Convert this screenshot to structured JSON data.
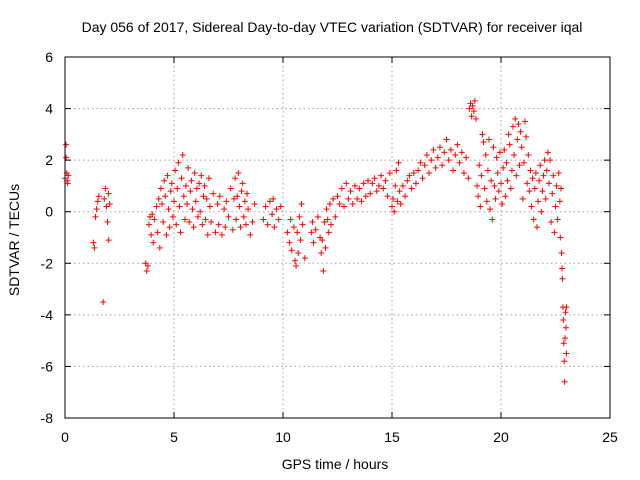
{
  "chart_data": {
    "type": "scatter",
    "title": "Day 056 of 2017, Sidereal Day-to-day VTEC variation (SDTVAR) for receiver iqal",
    "xlabel": "GPS time / hours",
    "ylabel": "SDTVAR / TECUs",
    "xlim": [
      0,
      25
    ],
    "ylim": [
      -8,
      6
    ],
    "x_ticks": [
      0,
      5,
      10,
      15,
      20,
      25
    ],
    "y_ticks": [
      -8,
      -6,
      -4,
      -2,
      0,
      2,
      4,
      6
    ],
    "x_tick_labels": [
      "0",
      "5",
      "10",
      "15",
      "20",
      "25"
    ],
    "y_tick_labels": [
      "-8",
      "-6",
      "-4",
      "-2",
      "0",
      "2",
      "4",
      "6"
    ],
    "grid": true,
    "marker": "plus",
    "color": "#ff0000",
    "series": [
      {
        "name": "SDTVAR",
        "points": [
          [
            0.0,
            1.3
          ],
          [
            0.05,
            2.6
          ],
          [
            0.05,
            2.1
          ],
          [
            0.08,
            1.5
          ],
          [
            0.1,
            1.2
          ],
          [
            0.12,
            1.1
          ],
          [
            0.15,
            1.4
          ],
          [
            1.3,
            -1.2
          ],
          [
            1.35,
            -1.4
          ],
          [
            1.4,
            -0.2
          ],
          [
            1.45,
            0.1
          ],
          [
            1.5,
            0.4
          ],
          [
            1.55,
            0.6
          ],
          [
            1.75,
            -3.5
          ],
          [
            1.8,
            0.5
          ],
          [
            1.85,
            0.9
          ],
          [
            1.9,
            0.2
          ],
          [
            1.95,
            -0.4
          ],
          [
            2.0,
            0.7
          ],
          [
            2.0,
            -1.1
          ],
          [
            2.05,
            0.3
          ],
          [
            3.7,
            -2.0
          ],
          [
            3.75,
            -2.3
          ],
          [
            3.8,
            -2.1
          ],
          [
            3.85,
            -0.5
          ],
          [
            3.9,
            -0.2
          ],
          [
            3.95,
            -0.9
          ],
          [
            4.0,
            -0.1
          ],
          [
            4.05,
            -1.2
          ],
          [
            4.1,
            -0.3
          ],
          [
            4.2,
            0.2
          ],
          [
            4.25,
            -0.8
          ],
          [
            4.3,
            0.5
          ],
          [
            4.35,
            -1.4
          ],
          [
            4.4,
            0.9
          ],
          [
            4.45,
            0.3
          ],
          [
            4.5,
            -0.4
          ],
          [
            4.55,
            1.2
          ],
          [
            4.6,
            0.6
          ],
          [
            4.65,
            -0.9
          ],
          [
            4.7,
            1.4
          ],
          [
            4.75,
            0.1
          ],
          [
            4.8,
            -0.6
          ],
          [
            4.85,
            0.8
          ],
          [
            4.9,
            1.1
          ],
          [
            4.95,
            -0.2
          ],
          [
            5.0,
            0.4
          ],
          [
            5.05,
            1.6
          ],
          [
            5.1,
            -0.5
          ],
          [
            5.15,
            0.9
          ],
          [
            5.2,
            1.9
          ],
          [
            5.25,
            0.2
          ],
          [
            5.3,
            -0.8
          ],
          [
            5.35,
            1.3
          ],
          [
            5.4,
            2.2
          ],
          [
            5.45,
            0.6
          ],
          [
            5.5,
            -0.3
          ],
          [
            5.55,
            1.0
          ],
          [
            5.6,
            0.3
          ],
          [
            5.65,
            1.7
          ],
          [
            5.7,
            -0.4
          ],
          [
            5.75,
            0.8
          ],
          [
            5.8,
            1.2
          ],
          [
            5.85,
            0.1
          ],
          [
            5.9,
            -0.6
          ],
          [
            5.95,
            1.5
          ],
          [
            6.0,
            0.4
          ],
          [
            6.05,
            0.9
          ],
          [
            6.1,
            -0.2
          ],
          [
            6.15,
            1.1
          ],
          [
            6.2,
            0.0
          ],
          [
            6.25,
            1.4
          ],
          [
            6.3,
            -0.5
          ],
          [
            6.35,
            0.6
          ],
          [
            6.4,
            1.0
          ],
          [
            6.45,
            -0.3
          ],
          [
            6.5,
            0.5
          ],
          [
            6.55,
            -0.9
          ],
          [
            6.6,
            1.3
          ],
          [
            6.65,
            0.2
          ],
          [
            6.7,
            -0.4
          ],
          [
            6.8,
            0.7
          ],
          [
            6.9,
            -0.8
          ],
          [
            7.0,
            0.3
          ],
          [
            7.05,
            -0.5
          ],
          [
            7.1,
            0.6
          ],
          [
            7.2,
            -0.9
          ],
          [
            7.3,
            0.1
          ],
          [
            7.35,
            -0.6
          ],
          [
            7.4,
            0.4
          ],
          [
            7.5,
            -0.2
          ],
          [
            7.6,
            0.9
          ],
          [
            7.7,
            -0.7
          ],
          [
            7.75,
            0.5
          ],
          [
            7.8,
            1.3
          ],
          [
            7.85,
            -0.3
          ],
          [
            7.9,
            0.6
          ],
          [
            7.95,
            1.5
          ],
          [
            8.0,
            0.2
          ],
          [
            8.05,
            -0.6
          ],
          [
            8.1,
            0.8
          ],
          [
            8.15,
            1.1
          ],
          [
            8.2,
            -0.2
          ],
          [
            8.25,
            0.4
          ],
          [
            8.3,
            -0.5
          ],
          [
            8.35,
            0.7
          ],
          [
            8.4,
            0.1
          ],
          [
            8.5,
            -0.9
          ],
          [
            8.6,
            -0.4
          ],
          [
            8.7,
            0.3
          ],
          [
            9.1,
            -0.3
          ],
          [
            9.2,
            0.2
          ],
          [
            9.3,
            -0.5
          ],
          [
            9.4,
            0.4
          ],
          [
            9.5,
            -0.1
          ],
          [
            9.55,
            0.5
          ],
          [
            9.6,
            -0.6
          ],
          [
            9.7,
            0.1
          ],
          [
            9.8,
            -0.3
          ],
          [
            9.9,
            0.2
          ],
          [
            10.2,
            -0.8
          ],
          [
            10.3,
            -1.2
          ],
          [
            10.35,
            -0.3
          ],
          [
            10.4,
            -1.5
          ],
          [
            10.5,
            -0.6
          ],
          [
            10.55,
            -1.9
          ],
          [
            10.6,
            -2.1
          ],
          [
            10.65,
            -0.8
          ],
          [
            10.7,
            -1.6
          ],
          [
            10.75,
            -0.2
          ],
          [
            10.8,
            -1.1
          ],
          [
            10.85,
            0.3
          ],
          [
            10.9,
            -0.5
          ],
          [
            11.0,
            -1.8
          ],
          [
            11.3,
            -0.8
          ],
          [
            11.35,
            -0.4
          ],
          [
            11.4,
            -1.2
          ],
          [
            11.5,
            -0.7
          ],
          [
            11.6,
            -0.2
          ],
          [
            11.7,
            -1.0
          ],
          [
            11.75,
            -1.6
          ],
          [
            11.8,
            -1.1
          ],
          [
            11.85,
            -2.3
          ],
          [
            11.9,
            -0.4
          ],
          [
            11.95,
            -1.4
          ],
          [
            12.0,
            0.1
          ],
          [
            12.05,
            -0.3
          ],
          [
            12.1,
            -0.8
          ],
          [
            12.15,
            0.3
          ],
          [
            12.2,
            -0.5
          ],
          [
            12.3,
            0.5
          ],
          [
            12.4,
            -0.2
          ],
          [
            12.5,
            0.6
          ],
          [
            12.6,
            0.3
          ],
          [
            12.7,
            0.9
          ],
          [
            12.8,
            0.2
          ],
          [
            12.9,
            1.1
          ],
          [
            13.0,
            0.5
          ],
          [
            13.1,
            0.8
          ],
          [
            13.2,
            0.3
          ],
          [
            13.3,
            1.0
          ],
          [
            13.4,
            0.5
          ],
          [
            13.5,
            0.9
          ],
          [
            13.6,
            0.4
          ],
          [
            13.7,
            1.1
          ],
          [
            13.8,
            0.6
          ],
          [
            13.9,
            1.2
          ],
          [
            14.0,
            0.7
          ],
          [
            14.1,
            1.1
          ],
          [
            14.2,
            1.3
          ],
          [
            14.3,
            0.8
          ],
          [
            14.4,
            1.0
          ],
          [
            14.5,
            1.4
          ],
          [
            14.6,
            0.9
          ],
          [
            14.7,
            1.2
          ],
          [
            14.8,
            0.6
          ],
          [
            14.9,
            1.5
          ],
          [
            15.0,
            0.2
          ],
          [
            15.05,
            0.5
          ],
          [
            15.1,
            0.0
          ],
          [
            15.15,
            1.0
          ],
          [
            15.2,
            1.6
          ],
          [
            15.25,
            0.4
          ],
          [
            15.3,
            1.9
          ],
          [
            15.35,
            0.8
          ],
          [
            15.4,
            0.3
          ],
          [
            15.5,
            1.0
          ],
          [
            15.6,
            0.6
          ],
          [
            15.7,
            1.2
          ],
          [
            15.8,
            1.4
          ],
          [
            15.9,
            0.9
          ],
          [
            16.0,
            1.5
          ],
          [
            16.1,
            1.1
          ],
          [
            16.2,
            1.6
          ],
          [
            16.3,
            1.9
          ],
          [
            16.4,
            1.3
          ],
          [
            16.5,
            1.8
          ],
          [
            16.6,
            2.2
          ],
          [
            16.7,
            1.5
          ],
          [
            16.8,
            2.0
          ],
          [
            16.9,
            2.4
          ],
          [
            17.0,
            1.7
          ],
          [
            17.1,
            2.1
          ],
          [
            17.2,
            2.5
          ],
          [
            17.3,
            1.8
          ],
          [
            17.4,
            2.3
          ],
          [
            17.5,
            2.8
          ],
          [
            17.6,
            2.0
          ],
          [
            17.7,
            2.4
          ],
          [
            17.8,
            1.6
          ],
          [
            17.9,
            2.2
          ],
          [
            18.0,
            2.6
          ],
          [
            18.1,
            1.9
          ],
          [
            18.2,
            2.3
          ],
          [
            18.3,
            1.5
          ],
          [
            18.4,
            2.1
          ],
          [
            18.5,
            1.3
          ],
          [
            18.55,
            4.0
          ],
          [
            18.6,
            4.2
          ],
          [
            18.65,
            3.7
          ],
          [
            18.7,
            4.1
          ],
          [
            18.75,
            3.9
          ],
          [
            18.8,
            4.3
          ],
          [
            18.85,
            3.6
          ],
          [
            18.9,
            1.0
          ],
          [
            18.95,
            0.6
          ],
          [
            19.0,
            1.8
          ],
          [
            19.05,
            0.2
          ],
          [
            19.1,
            1.4
          ],
          [
            19.15,
            3.0
          ],
          [
            19.2,
            2.7
          ],
          [
            19.25,
            0.9
          ],
          [
            19.3,
            2.2
          ],
          [
            19.35,
            0.4
          ],
          [
            19.4,
            1.6
          ],
          [
            19.45,
            2.8
          ],
          [
            19.5,
            0.1
          ],
          [
            19.55,
            1.2
          ],
          [
            19.6,
            -0.3
          ],
          [
            19.65,
            2.5
          ],
          [
            19.7,
            1.0
          ],
          [
            19.75,
            0.5
          ],
          [
            19.8,
            2.1
          ],
          [
            19.85,
            1.5
          ],
          [
            19.9,
            0.8
          ],
          [
            19.95,
            2.3
          ],
          [
            20.0,
            1.1
          ],
          [
            20.05,
            0.3
          ],
          [
            20.1,
            1.7
          ],
          [
            20.15,
            2.4
          ],
          [
            20.2,
            0.6
          ],
          [
            20.25,
            1.9
          ],
          [
            20.3,
            1.2
          ],
          [
            20.35,
            3.0
          ],
          [
            20.4,
            2.6
          ],
          [
            20.45,
            0.9
          ],
          [
            20.5,
            1.6
          ],
          [
            20.55,
            3.3
          ],
          [
            20.6,
            2.2
          ],
          [
            20.65,
            3.6
          ],
          [
            20.7,
            1.4
          ],
          [
            20.75,
            2.8
          ],
          [
            20.8,
            3.4
          ],
          [
            20.85,
            1.8
          ],
          [
            20.9,
            3.1
          ],
          [
            20.95,
            2.5
          ],
          [
            21.0,
            0.5
          ],
          [
            21.05,
            1.9
          ],
          [
            21.1,
            3.5
          ],
          [
            21.15,
            2.9
          ],
          [
            21.2,
            1.1
          ],
          [
            21.25,
            2.2
          ],
          [
            21.3,
            0.8
          ],
          [
            21.35,
            1.6
          ],
          [
            21.4,
            0.2
          ],
          [
            21.45,
            1.3
          ],
          [
            21.5,
            -0.3
          ],
          [
            21.55,
            0.9
          ],
          [
            21.6,
            1.5
          ],
          [
            21.65,
            -0.6
          ],
          [
            21.7,
            0.4
          ],
          [
            21.75,
            1.2
          ],
          [
            21.8,
            1.8
          ],
          [
            21.85,
            0.0
          ],
          [
            21.9,
            0.8
          ],
          [
            21.95,
            1.4
          ],
          [
            22.0,
            2.0
          ],
          [
            22.05,
            0.5
          ],
          [
            22.1,
            1.6
          ],
          [
            22.15,
            2.3
          ],
          [
            22.2,
            1.1
          ],
          [
            22.25,
            2.0
          ],
          [
            22.3,
            -0.4
          ],
          [
            22.35,
            0.7
          ],
          [
            22.4,
            1.4
          ],
          [
            22.45,
            -0.8
          ],
          [
            22.5,
            0.2
          ],
          [
            22.55,
            1.0
          ],
          [
            22.6,
            -0.3
          ],
          [
            22.65,
            1.5
          ],
          [
            22.7,
            0.4
          ],
          [
            22.72,
            -1.0
          ],
          [
            22.75,
            0.9
          ],
          [
            22.78,
            -1.6
          ],
          [
            22.8,
            -2.2
          ],
          [
            22.82,
            -2.6
          ],
          [
            22.84,
            -3.7
          ],
          [
            22.86,
            -4.2
          ],
          [
            22.88,
            -5.1
          ],
          [
            22.9,
            -5.8
          ],
          [
            22.92,
            -6.6
          ],
          [
            22.94,
            -4.9
          ],
          [
            22.96,
            -3.9
          ],
          [
            22.98,
            -4.5
          ],
          [
            23.0,
            -5.5
          ],
          [
            23.0,
            -3.7
          ]
        ]
      }
    ]
  }
}
